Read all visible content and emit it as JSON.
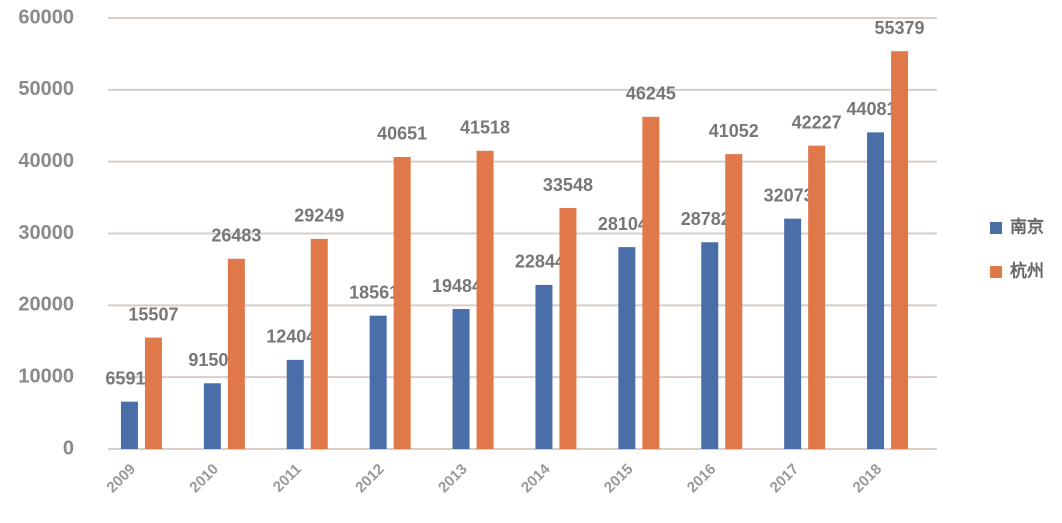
{
  "chart_data": {
    "type": "bar",
    "categories": [
      "2009",
      "2010",
      "2011",
      "2012",
      "2013",
      "2014",
      "2015",
      "2016",
      "2017",
      "2018"
    ],
    "series": [
      {
        "name": "南京",
        "color": "#4a6fa8",
        "values": [
          6591,
          9150,
          12404,
          18561,
          19484,
          22844,
          28104,
          28782,
          32073,
          44081
        ]
      },
      {
        "name": "杭州",
        "color": "#e0784a",
        "values": [
          15507,
          26483,
          29249,
          40651,
          41518,
          33548,
          46245,
          41052,
          42227,
          55379
        ]
      }
    ],
    "ylim": [
      0,
      60000
    ],
    "yticks": [
      0,
      10000,
      20000,
      30000,
      40000,
      50000,
      60000
    ],
    "grid": true,
    "legend": "right"
  }
}
